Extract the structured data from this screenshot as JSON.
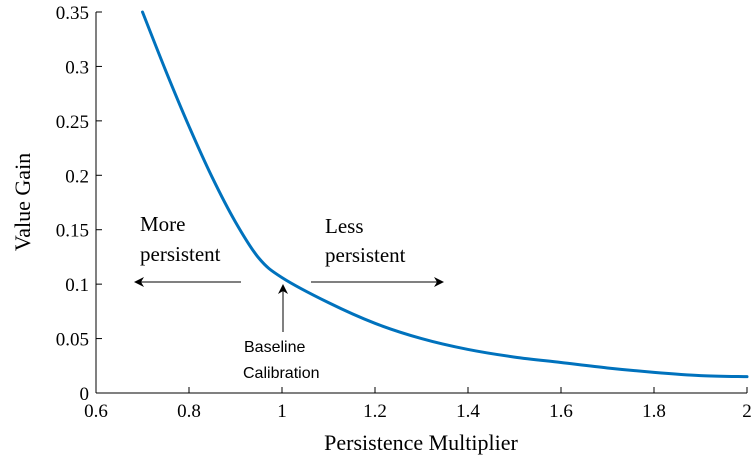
{
  "chart_data": {
    "type": "line",
    "xlabel": "Persistence Multiplier",
    "ylabel": "Value Gain",
    "xlim": [
      0.6,
      2
    ],
    "ylim": [
      0,
      0.35
    ],
    "xticks": [
      "0.6",
      "0.8",
      "1",
      "1.2",
      "1.4",
      "1.6",
      "1.8",
      "2"
    ],
    "yticks": [
      "0",
      "0.05",
      "0.1",
      "0.15",
      "0.2",
      "0.25",
      "0.3",
      "0.35"
    ],
    "grid": false,
    "line_color": "#0072BD",
    "series": [
      {
        "x": [
          0.7,
          0.75,
          0.8,
          0.85,
          0.9,
          0.95,
          1.0,
          1.1,
          1.2,
          1.3,
          1.4,
          1.5,
          1.6,
          1.7,
          1.8,
          1.9,
          2.0
        ],
        "values": [
          0.35,
          0.296,
          0.245,
          0.198,
          0.157,
          0.124,
          0.106,
          0.083,
          0.064,
          0.05,
          0.04,
          0.033,
          0.028,
          0.023,
          0.019,
          0.016,
          0.015
        ]
      }
    ],
    "annotations": {
      "left_line1": "More",
      "left_line2": "persistent",
      "right_line1": "Less",
      "right_line2": "persistent",
      "baseline_line1": "Baseline",
      "baseline_line2": "Calibration"
    }
  }
}
